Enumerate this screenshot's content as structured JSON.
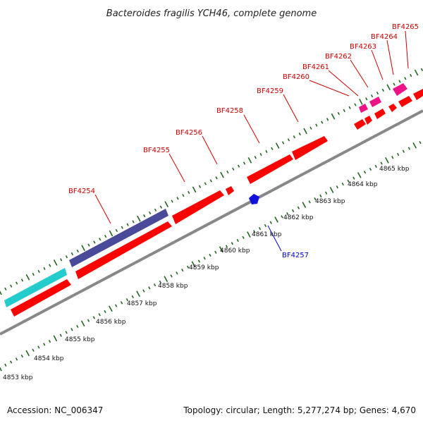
{
  "title": "Bacteroides fragilis YCH46, complete genome",
  "accession": "Accession: NC_006347",
  "topology": "Topology: circular; Length: 5,277,274 bp; Genes: 4,670",
  "colors": {
    "forward_label": "#cc0000",
    "reverse_label": "#0000cc",
    "red_gene": "#ff0000",
    "magenta_gene": "#ee1188",
    "blue_gene": "#1111dd",
    "purple_feature": "#4a4a9a",
    "cyan_feature": "#22cccc",
    "tick": "#226622",
    "backbone": "#888888"
  },
  "scale_labels": [
    "4853 kbp",
    "4854 kbp",
    "4855 kbp",
    "4856 kbp",
    "4857 kbp",
    "4858 kbp",
    "4859 kbp",
    "4860 kbp",
    "4861 kbp",
    "4862 kbp",
    "4863 kbp",
    "4864 kbp",
    "4865 kbp"
  ],
  "gene_labels": [
    {
      "id": "BF4254",
      "strand": "forward"
    },
    {
      "id": "BF4255",
      "strand": "forward"
    },
    {
      "id": "BF4256",
      "strand": "forward"
    },
    {
      "id": "BF4257",
      "strand": "reverse"
    },
    {
      "id": "BF4258",
      "strand": "forward"
    },
    {
      "id": "BF4259",
      "strand": "forward"
    },
    {
      "id": "BF4260",
      "strand": "forward"
    },
    {
      "id": "BF4261",
      "strand": "forward"
    },
    {
      "id": "BF4262",
      "strand": "forward"
    },
    {
      "id": "BF4263",
      "strand": "forward"
    },
    {
      "id": "BF4264",
      "strand": "forward"
    },
    {
      "id": "BF4265",
      "strand": "forward"
    }
  ]
}
